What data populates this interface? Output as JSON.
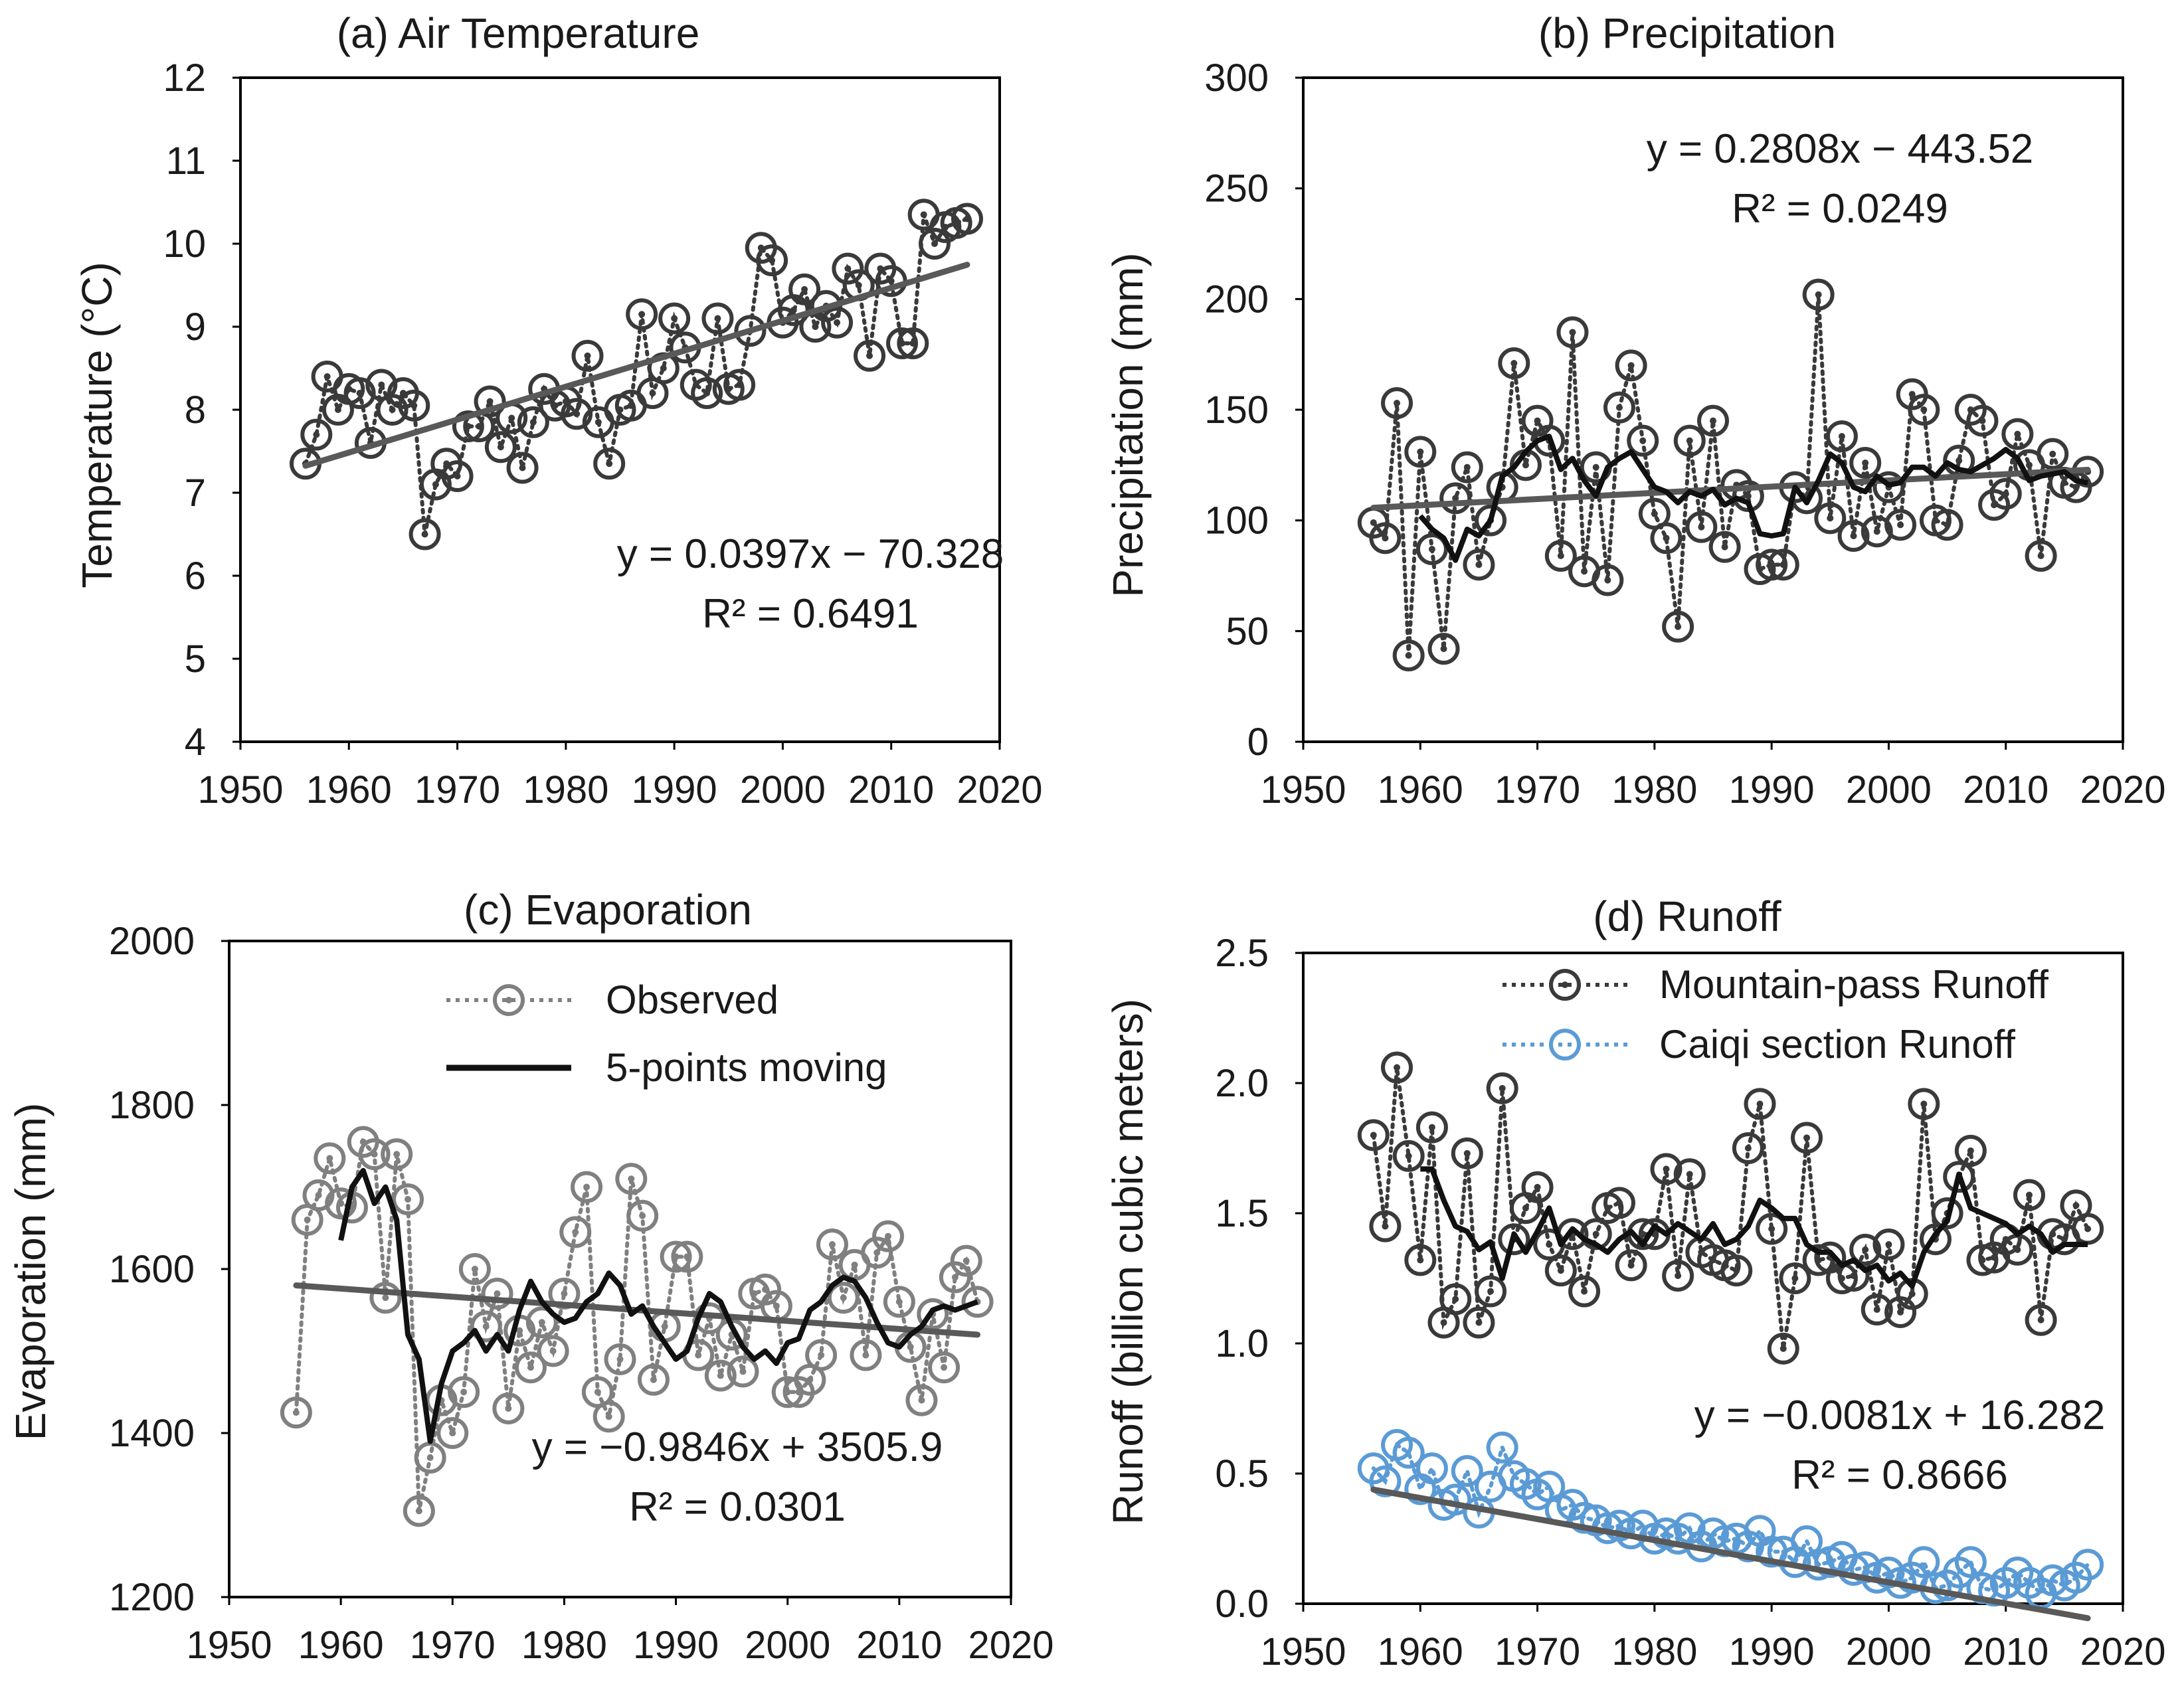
{
  "colors": {
    "observed": "#3a3a3a",
    "observed_gray": "#808080",
    "moving": "#111111",
    "trend": "#595959",
    "caiqi": "#5b9bd5",
    "frame": "#000000"
  },
  "chart_data": [
    {
      "type": "scatter",
      "panel": "a",
      "title": "(a) Air Temperature",
      "xlabel": "",
      "ylabel": "Temperature  (°C)",
      "xlim": [
        1950,
        2020
      ],
      "ylim": [
        4,
        12
      ],
      "xticks": [
        1950,
        1960,
        1970,
        1980,
        1990,
        2000,
        2010,
        2020
      ],
      "yticks": [
        4,
        5,
        6,
        7,
        8,
        9,
        10,
        11,
        12
      ],
      "x_start": 1956,
      "series": [
        {
          "name": "Observed",
          "style": "observed",
          "values": [
            7.35,
            7.7,
            8.4,
            8.0,
            8.25,
            8.2,
            7.6,
            8.3,
            8.0,
            8.2,
            8.05,
            6.5,
            7.1,
            7.35,
            7.2,
            7.8,
            7.8,
            8.1,
            7.55,
            7.9,
            7.3,
            7.85,
            8.25,
            8.05,
            8.1,
            7.95,
            8.65,
            7.85,
            7.35,
            8.0,
            8.05,
            9.15,
            8.2,
            8.5,
            9.1,
            8.75,
            8.3,
            8.2,
            9.1,
            8.25,
            8.3,
            8.95,
            9.95,
            9.8,
            9.05,
            9.2,
            9.45,
            9.0,
            9.25,
            9.05,
            9.7,
            9.5,
            8.65,
            9.7,
            9.55,
            8.8,
            8.8,
            10.35,
            10.0,
            10.2,
            10.25,
            10.3
          ]
        }
      ],
      "trend": {
        "slope": 0.0397,
        "intercept": -70.328,
        "equation": "y = 0.0397x − 70.328",
        "r2": "R² = 0.6491"
      }
    },
    {
      "type": "scatter",
      "panel": "b",
      "title": "(b) Precipitation",
      "xlabel": "",
      "ylabel": "Precipitation  (mm)",
      "xlim": [
        1950,
        2020
      ],
      "ylim": [
        0,
        300
      ],
      "xticks": [
        1950,
        1960,
        1970,
        1980,
        1990,
        2000,
        2010,
        2020
      ],
      "yticks": [
        0,
        50,
        100,
        150,
        200,
        250,
        300
      ],
      "x_start": 1956,
      "series": [
        {
          "name": "Observed",
          "style": "observed",
          "values": [
            99,
            92,
            153,
            39,
            131,
            87,
            42,
            110,
            124,
            80,
            100,
            115,
            171,
            125,
            145,
            136,
            84,
            185,
            77,
            124,
            73,
            151,
            170,
            136,
            103,
            92,
            52,
            136,
            97,
            145,
            88,
            116,
            111,
            78,
            80,
            80,
            115,
            110,
            202,
            101,
            138,
            93,
            126,
            95,
            115,
            98,
            157,
            150,
            100,
            98,
            127,
            150,
            145,
            107,
            112,
            139,
            125,
            84,
            130,
            117,
            115,
            122
          ]
        },
        {
          "name": "5-points moving",
          "style": "moving",
          "x_start": 1960,
          "values": [
            102,
            96,
            92,
            82,
            96,
            93,
            100,
            120,
            124,
            131,
            136,
            138,
            123,
            128,
            118,
            111,
            124,
            128,
            131,
            123,
            115,
            113,
            108,
            113,
            111,
            114,
            107,
            110,
            108,
            94,
            93,
            94,
            115,
            108,
            118,
            130,
            126,
            115,
            113,
            120,
            116,
            117,
            124,
            124,
            120,
            126,
            123,
            122,
            125,
            128,
            132,
            128,
            118,
            120,
            121,
            122,
            118,
            117
          ]
        }
      ],
      "trend": {
        "slope": 0.2808,
        "intercept": -443.52,
        "equation": "y = 0.2808x − 443.52",
        "r2": "R² = 0.0249"
      }
    },
    {
      "type": "scatter",
      "panel": "c",
      "title": "(c) Evaporation",
      "xlabel": "",
      "ylabel": "Evaporation  (mm)",
      "xlim": [
        1950,
        2020
      ],
      "ylim": [
        1200,
        2000
      ],
      "xticks": [
        1950,
        1960,
        1970,
        1980,
        1990,
        2000,
        2010,
        2020
      ],
      "yticks": [
        1200,
        1400,
        1600,
        1800,
        2000
      ],
      "x_start": 1956,
      "legend": {
        "observed": "Observed",
        "moving": "5-points moving"
      },
      "series": [
        {
          "name": "Observed",
          "style": "observed_gray",
          "values": [
            1425,
            1660,
            1690,
            1735,
            1680,
            1675,
            1755,
            1740,
            1565,
            1740,
            1685,
            1305,
            1370,
            1440,
            1400,
            1450,
            1600,
            1530,
            1570,
            1430,
            1525,
            1480,
            1535,
            1500,
            1570,
            1645,
            1700,
            1450,
            1420,
            1490,
            1710,
            1665,
            1465,
            1530,
            1615,
            1615,
            1495,
            1540,
            1470,
            1520,
            1475,
            1570,
            1575,
            1555,
            1450,
            1450,
            1465,
            1495,
            1630,
            1565,
            1605,
            1495,
            1620,
            1640,
            1560,
            1505,
            1440,
            1545,
            1480,
            1590,
            1610,
            1560
          ]
        },
        {
          "name": "5-points moving",
          "style": "moving",
          "x_start": 1960,
          "values": [
            1635,
            1700,
            1720,
            1680,
            1700,
            1660,
            1520,
            1490,
            1390,
            1460,
            1500,
            1510,
            1525,
            1500,
            1520,
            1500,
            1550,
            1585,
            1560,
            1545,
            1535,
            1540,
            1560,
            1570,
            1595,
            1580,
            1545,
            1555,
            1530,
            1510,
            1490,
            1500,
            1540,
            1570,
            1560,
            1530,
            1505,
            1490,
            1500,
            1485,
            1510,
            1515,
            1550,
            1560,
            1580,
            1590,
            1585,
            1565,
            1535,
            1510,
            1505,
            1520,
            1530,
            1550,
            1555,
            1550,
            1555,
            1560
          ]
        }
      ],
      "trend": {
        "slope": -0.9846,
        "intercept": 3505.9,
        "equation": "y = −0.9846x + 3505.9",
        "r2": "R² = 0.0301"
      }
    },
    {
      "type": "scatter",
      "panel": "d",
      "title": "(d) Runoff",
      "xlabel": "",
      "ylabel": "Runoff  (billion cubic meters)",
      "xlim": [
        1950,
        2020
      ],
      "ylim": [
        0,
        2.5
      ],
      "xticks": [
        1950,
        1960,
        1970,
        1980,
        1990,
        2000,
        2010,
        2020
      ],
      "yticks": [
        "0.0",
        "0.5",
        "1.0",
        "1.5",
        "2.0",
        "2.5"
      ],
      "ytick_values": [
        0,
        0.5,
        1.0,
        1.5,
        2.0,
        2.5
      ],
      "x_start": 1956,
      "legend": {
        "mountain": "Mountain-pass Runoff",
        "caiqi": "Caiqi section Runoff"
      },
      "series": [
        {
          "name": "Mountain-pass Runoff",
          "style": "observed",
          "values": [
            1.8,
            1.45,
            2.06,
            1.72,
            1.32,
            1.83,
            1.08,
            1.17,
            1.73,
            1.08,
            1.2,
            1.98,
            1.4,
            1.52,
            1.6,
            1.38,
            1.28,
            1.42,
            1.2,
            1.42,
            1.52,
            1.54,
            1.3,
            1.42,
            1.42,
            1.67,
            1.26,
            1.65,
            1.35,
            1.32,
            1.3,
            1.28,
            1.75,
            1.92,
            1.44,
            0.98,
            1.25,
            1.79,
            1.32,
            1.33,
            1.25,
            1.26,
            1.36,
            1.13,
            1.38,
            1.12,
            1.19,
            1.92,
            1.4,
            1.5,
            1.64,
            1.74,
            1.32,
            1.33,
            1.4,
            1.36,
            1.57,
            1.09,
            1.42,
            1.4,
            1.53,
            1.44
          ]
        },
        {
          "name": "5-points moving",
          "style": "moving",
          "x_start": 1960,
          "values": [
            1.67,
            1.67,
            1.55,
            1.45,
            1.43,
            1.36,
            1.39,
            1.25,
            1.42,
            1.35,
            1.43,
            1.52,
            1.38,
            1.44,
            1.4,
            1.38,
            1.35,
            1.4,
            1.43,
            1.38,
            1.45,
            1.42,
            1.46,
            1.43,
            1.4,
            1.46,
            1.38,
            1.4,
            1.45,
            1.55,
            1.52,
            1.48,
            1.48,
            1.38,
            1.35,
            1.35,
            1.3,
            1.32,
            1.28,
            1.3,
            1.24,
            1.27,
            1.22,
            1.35,
            1.42,
            1.47,
            1.65,
            1.52,
            1.5,
            1.48,
            1.46,
            1.42,
            1.45,
            1.42,
            1.35,
            1.38,
            1.38,
            1.38
          ]
        },
        {
          "name": "Caiqi section Runoff",
          "style": "caiqi",
          "values": [
            0.52,
            0.47,
            0.61,
            0.58,
            0.44,
            0.52,
            0.38,
            0.4,
            0.51,
            0.35,
            0.45,
            0.6,
            0.49,
            0.46,
            0.42,
            0.45,
            0.36,
            0.38,
            0.33,
            0.32,
            0.29,
            0.3,
            0.27,
            0.3,
            0.25,
            0.27,
            0.25,
            0.29,
            0.22,
            0.27,
            0.24,
            0.25,
            0.22,
            0.28,
            0.2,
            0.2,
            0.16,
            0.24,
            0.15,
            0.16,
            0.18,
            0.13,
            0.14,
            0.1,
            0.12,
            0.08,
            0.1,
            0.16,
            0.06,
            0.07,
            0.12,
            0.16,
            0.06,
            0.05,
            0.08,
            0.12,
            0.08,
            0.04,
            0.09,
            0.07,
            0.1,
            0.15
          ]
        }
      ],
      "trend": {
        "slope": -0.0081,
        "intercept": 16.282,
        "equation": "y = −0.0081x + 16.282",
        "r2": "R² = 0.8666"
      }
    }
  ]
}
